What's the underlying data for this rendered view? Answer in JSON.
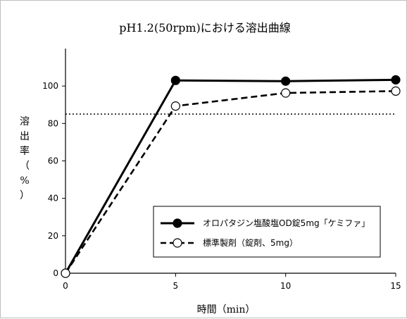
{
  "chart_data": {
    "type": "line",
    "title": "pH1.2(50rpm)における溶出曲線",
    "xlabel": "時間（min）",
    "ylabel": "溶出率（%）",
    "xlim": [
      0,
      15
    ],
    "ylim": [
      0,
      100
    ],
    "x_ticks": [
      "0",
      "5",
      "10",
      "15"
    ],
    "y_ticks": [
      "0",
      "20",
      "40",
      "60",
      "80",
      "100"
    ],
    "reference_line": 85,
    "grid": false,
    "legend_position": "bottom-right",
    "series": [
      {
        "name": "オロパタジン塩酸塩OD錠5mg「ケミファ」",
        "marker": "filled-circle",
        "line": "solid",
        "x": [
          0,
          5,
          10,
          15
        ],
        "y": [
          0,
          103.0,
          102.6,
          103.3
        ]
      },
      {
        "name": "標準製剤（錠剤、5mg）",
        "marker": "open-circle",
        "line": "dashed",
        "x": [
          0,
          5,
          10,
          15
        ],
        "y": [
          0,
          89.3,
          96.3,
          97.3
        ]
      }
    ]
  }
}
